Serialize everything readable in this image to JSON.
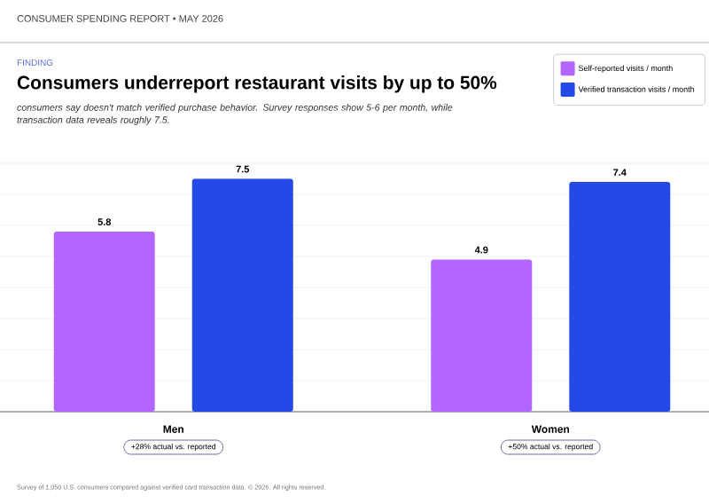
{
  "chart_data": {
    "type": "bar",
    "title": "Consumers underreport restaurant visits by up to 50%",
    "subtitle": "consumers say doesn't match verified purchase behavior. Survey responses show 5-6 per month, while transaction data reveals roughly 7.5.",
    "categories": [
      "Men",
      "Women"
    ],
    "series": [
      {
        "name": "Self-reported visits / month",
        "color": "#b266ff",
        "values": [
          5.8,
          4.9
        ]
      },
      {
        "name": "Verified transaction visits / month",
        "color": "#2449e6",
        "values": [
          7.5,
          7.4
        ]
      }
    ],
    "data_labels": true,
    "ylim": [
      0,
      8
    ],
    "yticks": [
      {
        "value": 0,
        "label": null
      },
      {
        "value": 1,
        "label": null
      },
      {
        "value": 2,
        "label": null
      },
      {
        "value": 3,
        "label": null
      },
      {
        "value": 4,
        "label": null
      },
      {
        "value": 5,
        "label": null
      },
      {
        "value": 6,
        "label": null
      },
      {
        "value": 7,
        "label": null
      },
      {
        "value": 8,
        "label": null
      }
    ],
    "tick_labels": "x",
    "grid": "y",
    "legend": "top right",
    "annotations": [
      "CONSUMER SPENDING REPORT • MAY 2026",
      "FINDING",
      "+28% actual vs. reported",
      "+50% actual vs. reported",
      "Survey of 1,050 U.S. consumers compared against verified card transaction data. © 2026. All rights reserved."
    ]
  }
}
